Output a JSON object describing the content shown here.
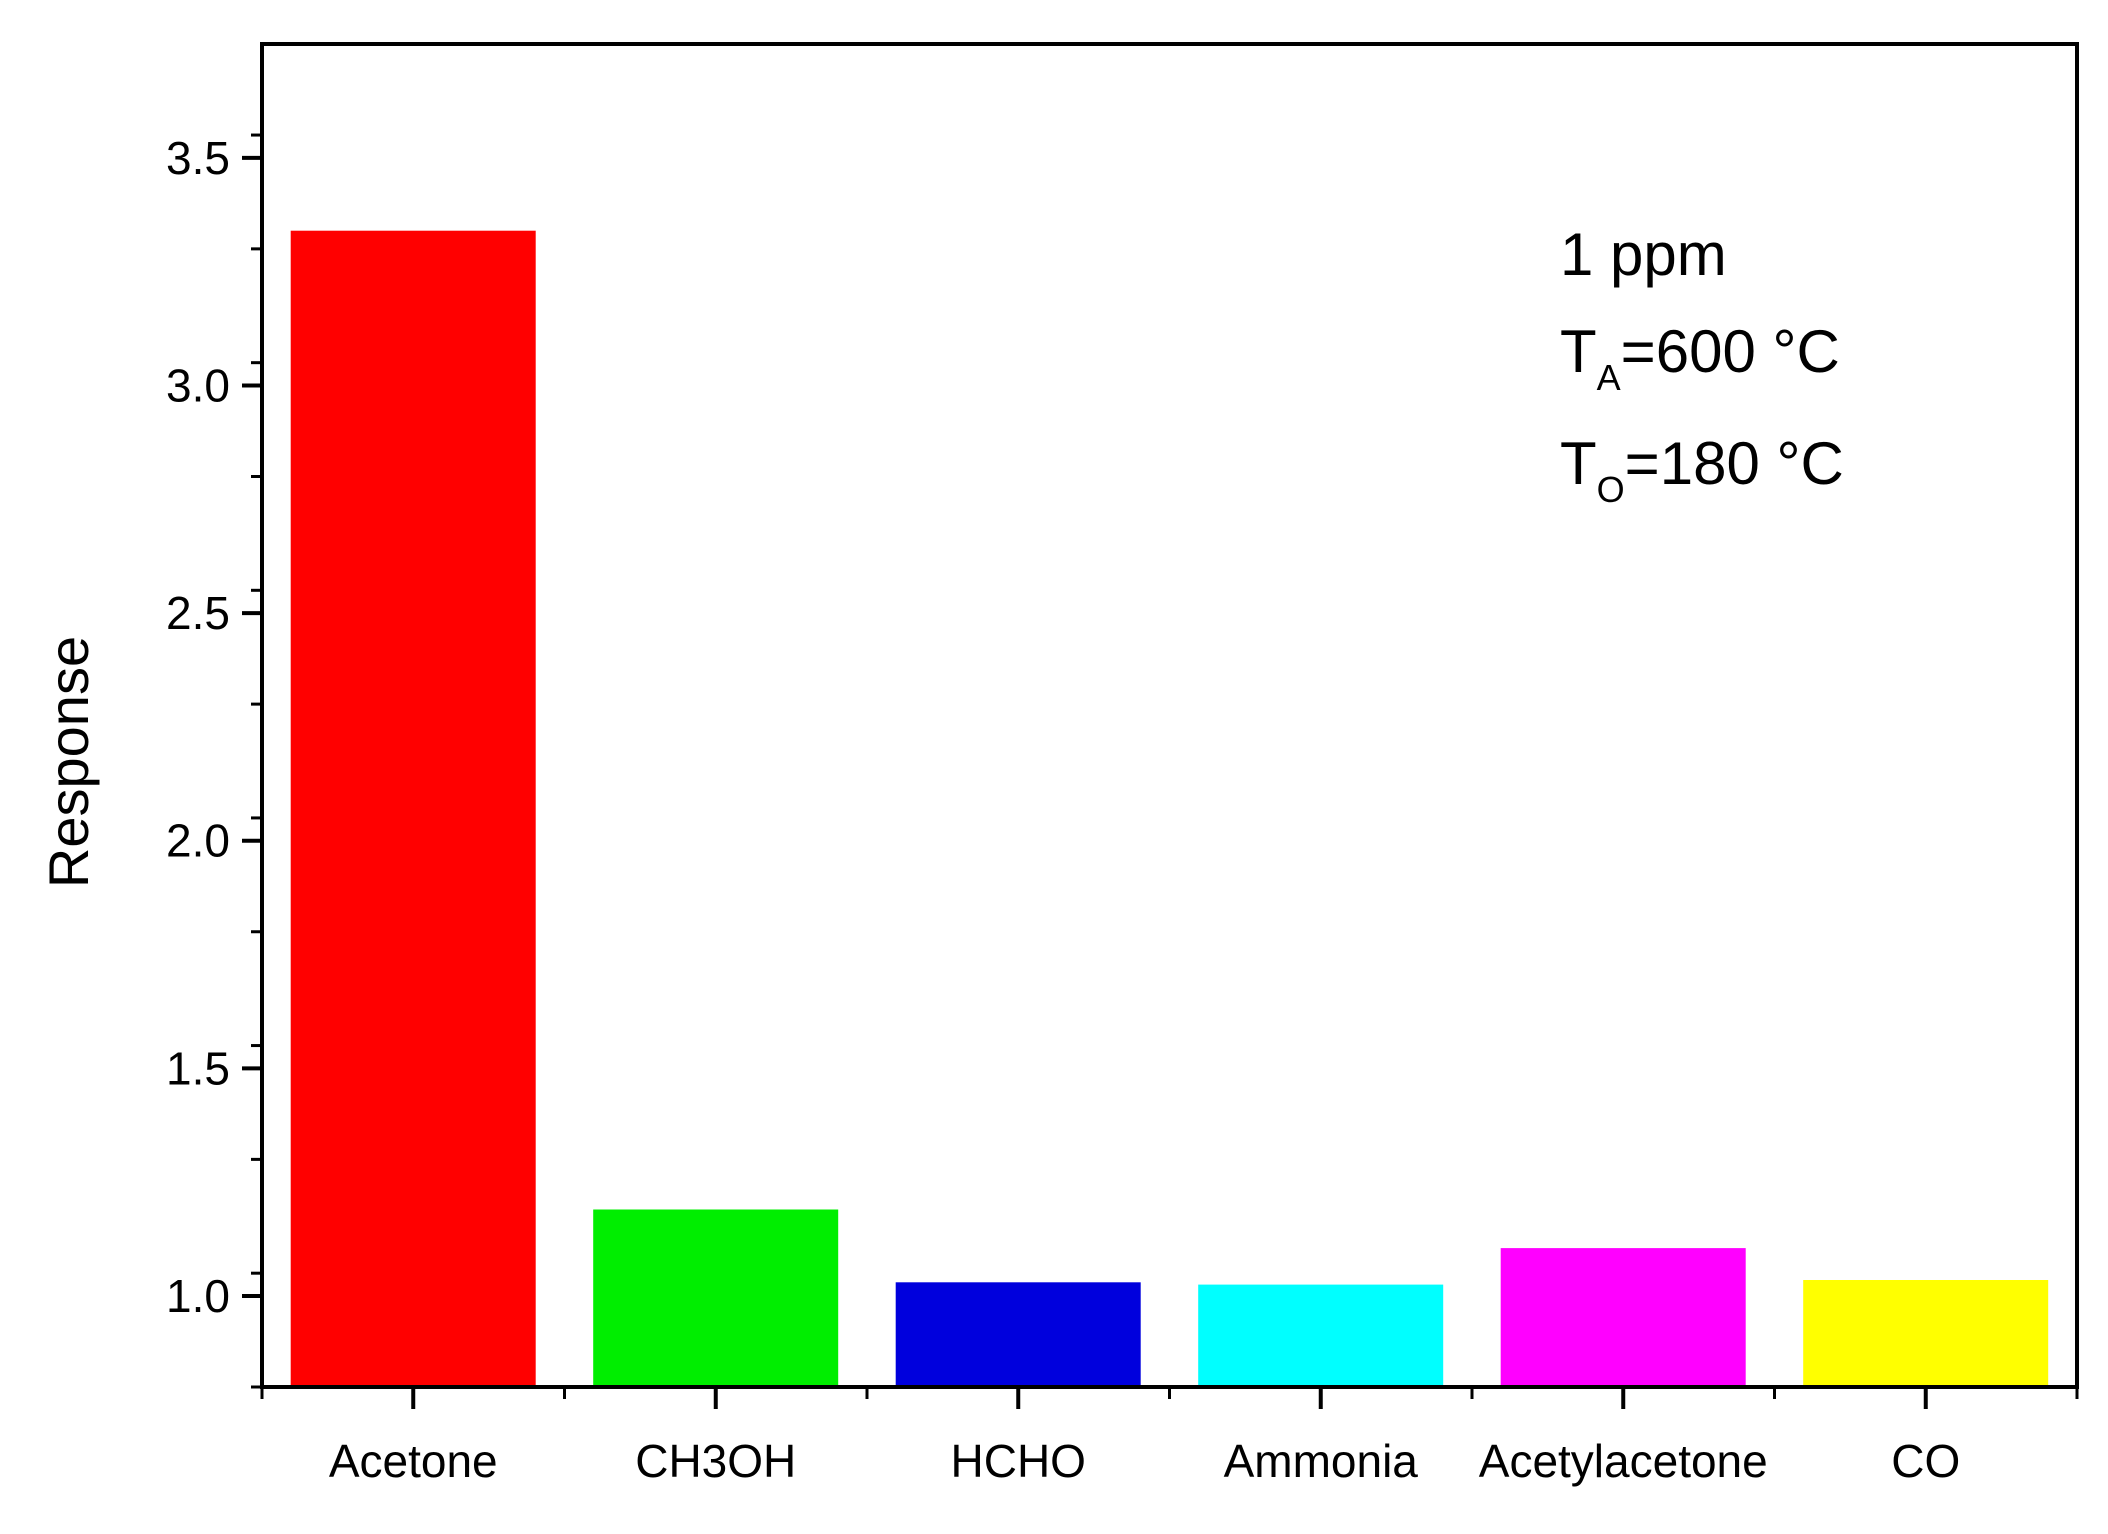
{
  "chart_data": {
    "type": "bar",
    "title": "",
    "xlabel": "",
    "ylabel": "Response",
    "ylim": [
      0.8,
      3.75
    ],
    "yticks": [
      "1.0",
      "1.5",
      "2.0",
      "2.5",
      "3.0",
      "3.5"
    ],
    "yminor_step": 0.25,
    "categories": [
      "Acetone",
      "CH3OH",
      "HCHO",
      "Ammonia",
      "Acetylacetone",
      "CO"
    ],
    "values": [
      3.34,
      1.19,
      1.03,
      1.025,
      1.105,
      1.035
    ],
    "colors": [
      "#ff0000",
      "#00ee00",
      "#0000dd",
      "#00ffff",
      "#ff00ff",
      "#ffff00"
    ],
    "grid": false,
    "legend": "none",
    "annotations": {
      "concentration": "1 ppm",
      "ta_main": "T",
      "ta_sub": "A",
      "ta_value": "=600 °C",
      "to_main": "T",
      "to_sub": "O",
      "to_value": "=180 °C"
    }
  }
}
